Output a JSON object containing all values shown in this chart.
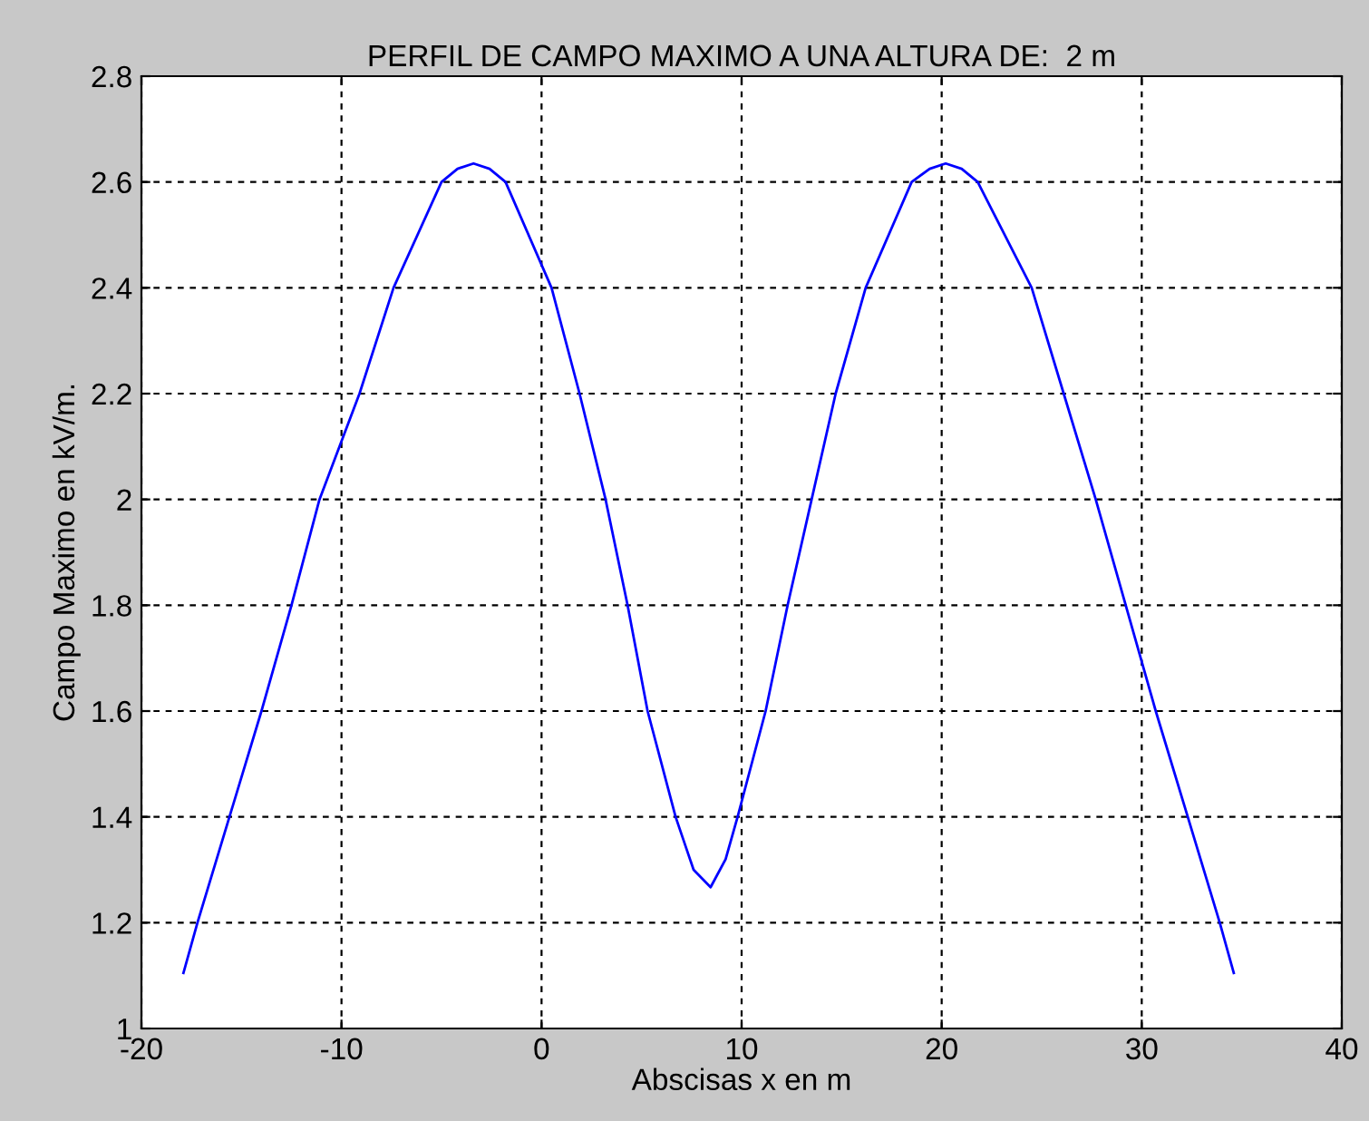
{
  "chart_data": {
    "type": "line",
    "title": "PERFIL DE CAMPO MAXIMO A UNA ALTURA DE:  2 m",
    "xlabel": "Abscisas x en m",
    "ylabel": "Campo Maximo en kV/m.",
    "x": [
      -17.9,
      -17.2,
      -15.6,
      -14.0,
      -12.5,
      -11.1,
      -9.1,
      -7.4,
      -5.0,
      -4.2,
      -3.4,
      -2.6,
      -1.8,
      0.5,
      1.9,
      3.2,
      4.3,
      5.3,
      6.7,
      7.6,
      8.45,
      9.2,
      9.8,
      11.2,
      12.3,
      13.5,
      14.7,
      16.2,
      18.5,
      19.4,
      20.2,
      21.0,
      21.8,
      24.5,
      26.1,
      27.7,
      29.2,
      30.7,
      32.3,
      33.9,
      34.6
    ],
    "series": [
      {
        "color": "#0000ff",
        "values": [
          1.105,
          1.2,
          1.4,
          1.6,
          1.8,
          2.0,
          2.2,
          2.4,
          2.6,
          2.625,
          2.635,
          2.625,
          2.6,
          2.4,
          2.2,
          2.0,
          1.8,
          1.6,
          1.4,
          1.3,
          1.267,
          1.32,
          1.4,
          1.6,
          1.8,
          2.0,
          2.2,
          2.4,
          2.6,
          2.625,
          2.635,
          2.625,
          2.6,
          2.4,
          2.2,
          2.0,
          1.8,
          1.6,
          1.4,
          1.2,
          1.105
        ]
      }
    ],
    "xlim": [
      -20,
      40
    ],
    "xticks": [
      -20,
      -10,
      0,
      10,
      20,
      30,
      40
    ],
    "ylim": [
      1,
      2.8
    ],
    "yticks": [
      1,
      1.2,
      1.4,
      1.6,
      1.8,
      2,
      2.2,
      2.4,
      2.6,
      2.8
    ],
    "grid": true,
    "marker": "none",
    "line_style": "solid"
  }
}
